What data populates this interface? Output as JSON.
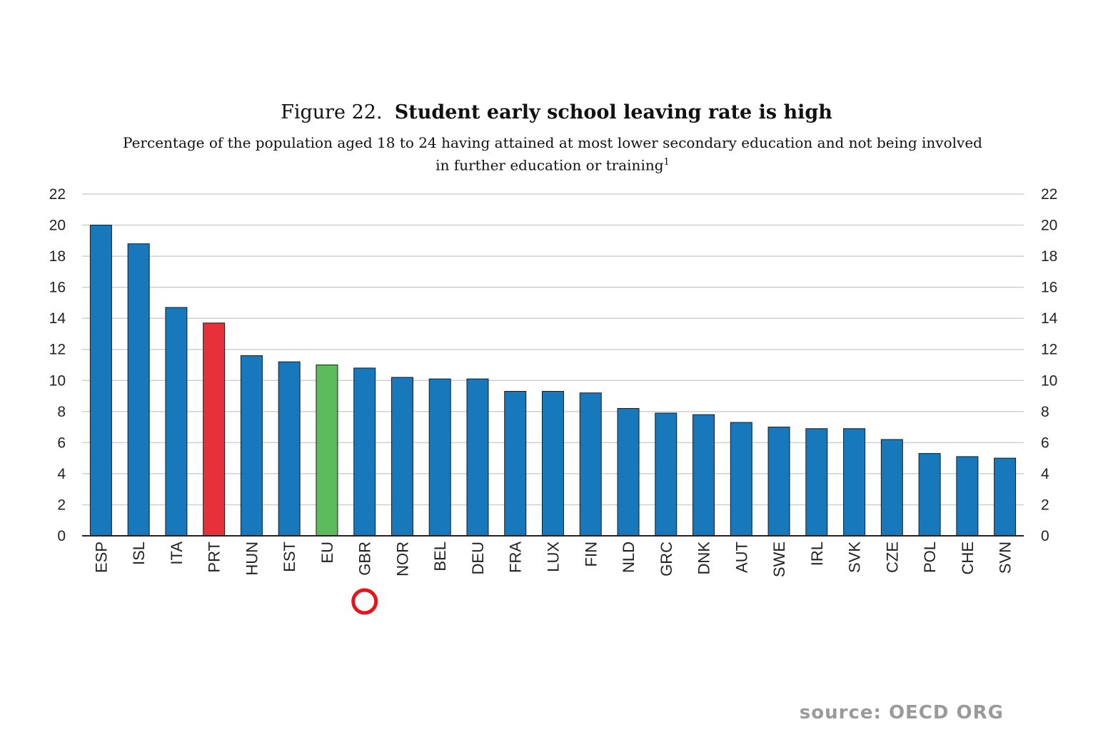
{
  "title": {
    "prefix": "Figure 22.",
    "main": "Student early school leaving rate is high"
  },
  "subtitle": {
    "line1": "Percentage of the population aged 18 to 24 having attained at most lower secondary education and not being involved",
    "line2": "in further education or training",
    "footnote": "1"
  },
  "source": "source: OECD ORG",
  "colors": {
    "default_bar": "#1778bc",
    "highlight_prt": "#e8303a",
    "highlight_eu": "#5cbb5c",
    "grid": "#cfcfcf",
    "axis": "#222222",
    "marker_circle": "#e8141c"
  },
  "marker": {
    "shape": "circle",
    "category": "GBR",
    "color": "#e8141c"
  },
  "chart_data": {
    "type": "bar",
    "categories": [
      "ESP",
      "ISL",
      "ITA",
      "PRT",
      "HUN",
      "EST",
      "EU",
      "GBR",
      "NOR",
      "BEL",
      "DEU",
      "FRA",
      "LUX",
      "FIN",
      "NLD",
      "GRC",
      "DNK",
      "AUT",
      "SWE",
      "IRL",
      "SVK",
      "CZE",
      "POL",
      "CHE",
      "SVN"
    ],
    "values": [
      20.0,
      18.8,
      14.7,
      13.7,
      11.6,
      11.2,
      11.0,
      10.8,
      10.2,
      10.1,
      10.1,
      9.3,
      9.3,
      9.2,
      8.2,
      7.9,
      7.8,
      7.3,
      7.0,
      6.9,
      6.9,
      6.2,
      5.3,
      5.1,
      5.0
    ],
    "highlight": {
      "PRT": "#e8303a",
      "EU": "#5cbb5c"
    },
    "ylim": [
      0,
      22
    ],
    "yticks": [
      0,
      2,
      4,
      6,
      8,
      10,
      12,
      14,
      16,
      18,
      20,
      22
    ],
    "dual_y_axis": true,
    "grid": true,
    "xlabel": "",
    "ylabel": ""
  }
}
